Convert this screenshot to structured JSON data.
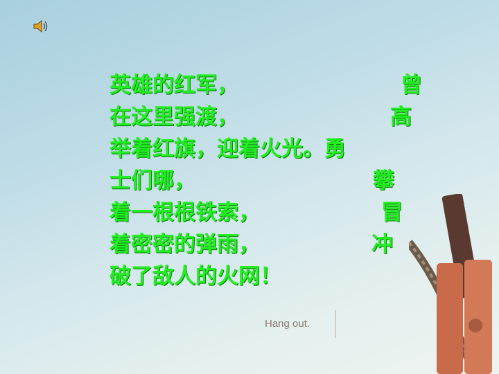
{
  "poem": {
    "lines": [
      {
        "text": "英雄的红军，",
        "tail": "曾"
      },
      {
        "text": "在这里强渡，",
        "tail": "高"
      },
      {
        "text": "举着红旗，迎着火光。勇",
        "tail": ""
      },
      {
        "text": "士们哪，",
        "tail": "攀"
      },
      {
        "text": "着一根根铁索，",
        "tail": "冒"
      },
      {
        "text": "着密密的弹雨，",
        "tail": "冲"
      },
      {
        "text": "破了敌人的火网！",
        "tail": ""
      }
    ]
  },
  "logo": {
    "text": "Hang out."
  },
  "colors": {
    "poem_text": "#22ee22",
    "background": "#bcdbe6"
  },
  "icons": {
    "audio": "speaker-icon"
  }
}
